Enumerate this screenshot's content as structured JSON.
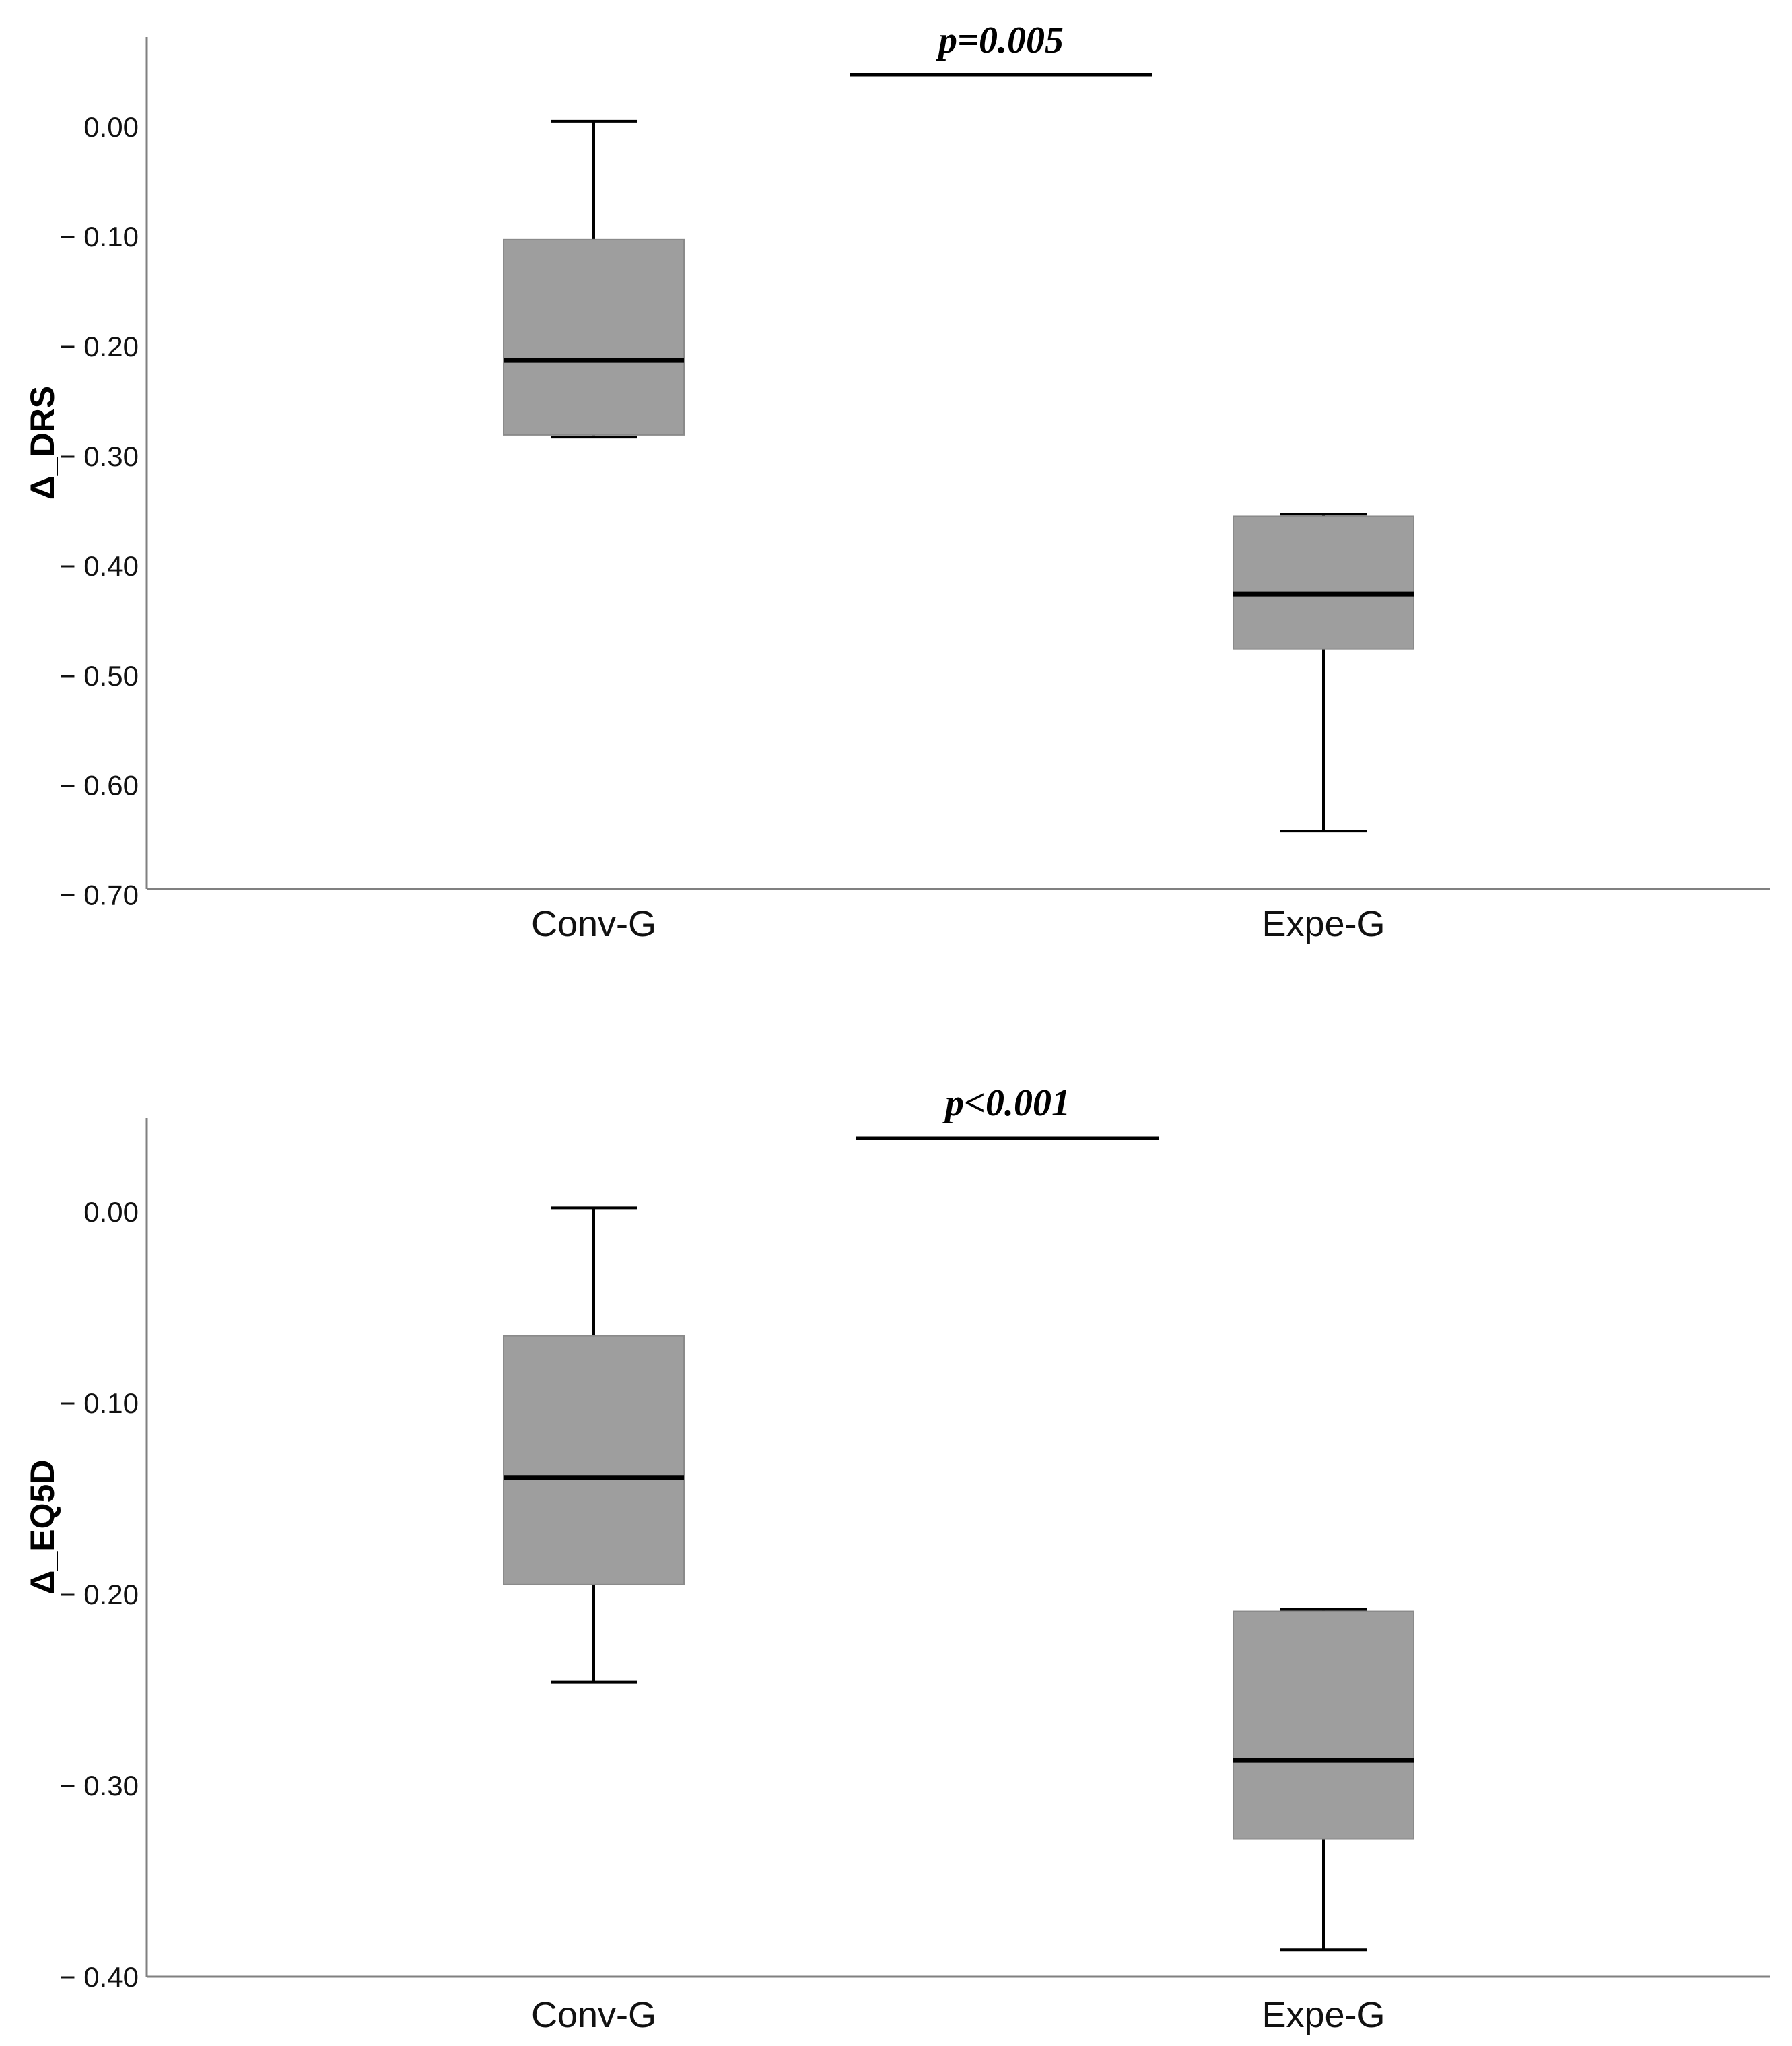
{
  "chart_data": [
    {
      "type": "boxplot",
      "ylabel": "Δ_DRS",
      "categories": [
        "Conv-G",
        "Expe-G"
      ],
      "ylim": [
        -0.7,
        0.08
      ],
      "yticks": [
        0,
        -0.1,
        -0.2,
        -0.3,
        -0.4,
        -0.5,
        -0.6,
        -0.7
      ],
      "ytick_labels": [
        "0.00",
        "− 0.10",
        "− 0.20",
        "− 0.30",
        "− 0.40",
        "− 0.50",
        "− 0.60",
        "− 0.70"
      ],
      "boxes": [
        {
          "category": "Conv-G",
          "min": -0.283,
          "q1": -0.281,
          "median": -0.213,
          "q3": -0.103,
          "max": 0.005
        },
        {
          "category": "Expe-G",
          "min": -0.642,
          "q1": -0.476,
          "median": -0.426,
          "q3": -0.355,
          "max": -0.353
        }
      ],
      "annotation": "p=0.005",
      "box_color": "#9e9e9e"
    },
    {
      "type": "boxplot",
      "ylabel": "Δ_EQ5D",
      "categories": [
        "Conv-G",
        "Expe-G"
      ],
      "ylim": [
        -0.4,
        0.045
      ],
      "yticks": [
        0,
        -0.1,
        -0.2,
        -0.3,
        -0.4
      ],
      "ytick_labels": [
        "0.00",
        "− 0.10",
        "− 0.20",
        "− 0.30",
        "− 0.40"
      ],
      "boxes": [
        {
          "category": "Conv-G",
          "min": -0.246,
          "q1": -0.195,
          "median": -0.139,
          "q3": -0.065,
          "max": 0.002
        },
        {
          "category": "Expe-G",
          "min": -0.386,
          "q1": -0.328,
          "median": -0.287,
          "q3": -0.209,
          "max": -0.208
        }
      ],
      "annotation": "p<0.001",
      "box_color": "#9e9e9e"
    }
  ]
}
